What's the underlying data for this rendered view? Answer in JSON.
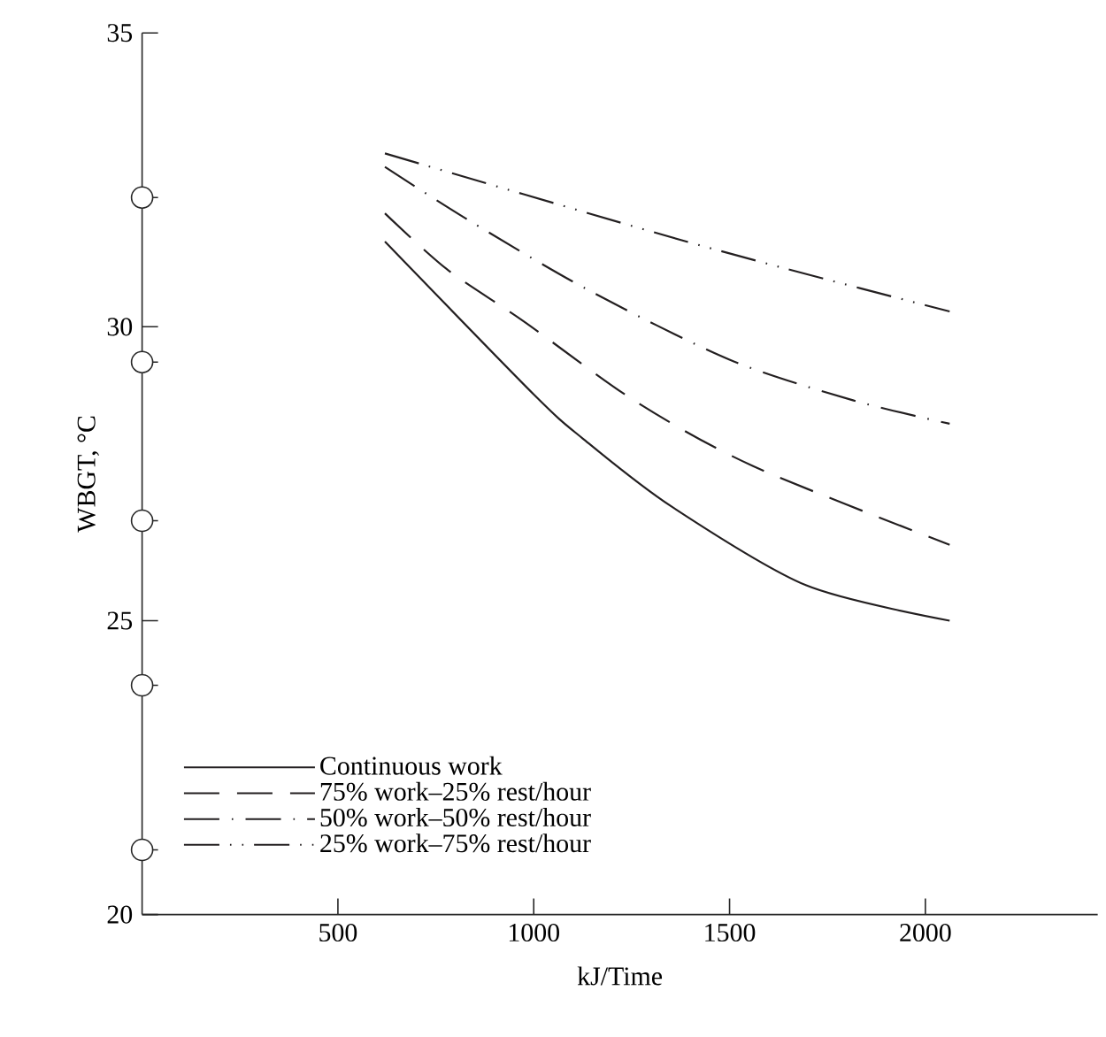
{
  "chart_data": {
    "type": "line",
    "xlabel": "kJ/Time",
    "ylabel": "WBGT, °C",
    "xlim": [
      0,
      2440
    ],
    "ylim": [
      20,
      35
    ],
    "xticks": [
      500,
      1000,
      1500,
      2000
    ],
    "yticks": [
      20,
      {
        "value": 21.1,
        "label": null
      },
      {
        "value": 23.9,
        "label": null
      },
      25,
      {
        "value": 26.7,
        "label": null
      },
      30,
      {
        "value": 29.4,
        "label": null
      },
      {
        "value": 32.2,
        "label": null
      },
      35
    ],
    "grid": false,
    "legend": "bottom left",
    "series": [
      {
        "name": "Continuous work",
        "color": "#231f20",
        "line_style": "solid",
        "x": [
          620,
          1000,
          1125,
          1350,
          1696,
          2062
        ],
        "values": [
          31.45,
          28.85,
          28.1,
          26.95,
          25.6,
          25.0
        ]
      },
      {
        "name": "75% work–25% rest/hour",
        "color": "#231f20",
        "line_style": "dashed",
        "x": [
          620,
          778,
          975,
          1260,
          1560,
          2062
        ],
        "values": [
          31.93,
          30.98,
          30.09,
          28.73,
          27.63,
          26.29
        ]
      },
      {
        "name": "50% work–50% rest/hour",
        "color": "#231f20",
        "line_style": "dashdot",
        "x": [
          620,
          832,
          1135,
          1500,
          1815,
          2062
        ],
        "values": [
          32.72,
          31.82,
          30.64,
          29.44,
          28.75,
          28.35
        ]
      },
      {
        "name": "25% work–75% rest/hour",
        "color": "#231f20",
        "line_style": "dashdotdot",
        "x": [
          620,
          1290,
          1643,
          2062
        ],
        "values": [
          32.95,
          31.64,
          30.99,
          30.26
        ]
      }
    ]
  }
}
